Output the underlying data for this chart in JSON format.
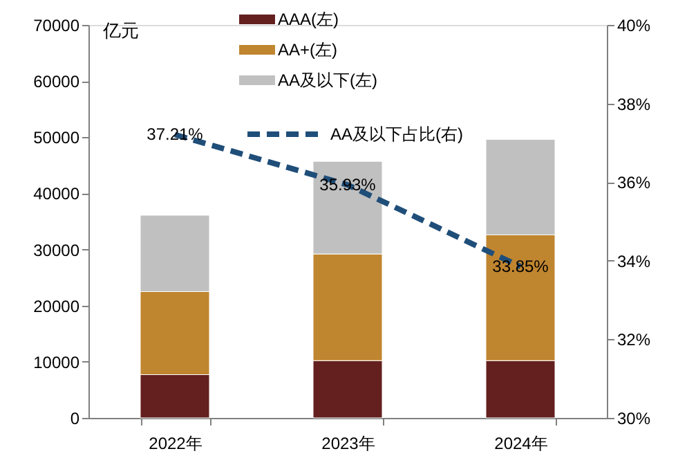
{
  "chart_data": {
    "type": "bar",
    "stacked": true,
    "categories": [
      "2022年",
      "2023年",
      "2024年"
    ],
    "ylabel": "亿元",
    "series": [
      {
        "name": "AAA(左)",
        "color": "#63201f",
        "values": [
          7700,
          10200,
          10200
        ]
      },
      {
        "name": "AA+(左)",
        "color": "#c0852f",
        "values": [
          14800,
          19000,
          22400
        ]
      },
      {
        "name": "AA及以下(左)",
        "color": "#c0c0c0",
        "values": [
          13600,
          16500,
          17000
        ]
      },
      {
        "name": "AA及以下占比(右)",
        "type": "line",
        "axis": "y2",
        "color": "#1f4e79",
        "line_style": "dashed",
        "marker": "none",
        "values": [
          37.21,
          35.93,
          33.85
        ],
        "value_labels": [
          "37.21%",
          "35.93%",
          "33.85%"
        ]
      }
    ],
    "ylim": [
      0,
      70000
    ],
    "yticks": [
      0,
      10000,
      20000,
      30000,
      40000,
      50000,
      60000,
      70000
    ],
    "y2lim": [
      30,
      40
    ],
    "y2ticks": [
      {
        "value": 30,
        "label": "30%"
      },
      {
        "value": 32,
        "label": "32%"
      },
      {
        "value": 34,
        "label": "34%"
      },
      {
        "value": 36,
        "label": "36%"
      },
      {
        "value": 38,
        "label": "38%"
      },
      {
        "value": 40,
        "label": "40%"
      }
    ],
    "grid": false,
    "legend": "top"
  }
}
